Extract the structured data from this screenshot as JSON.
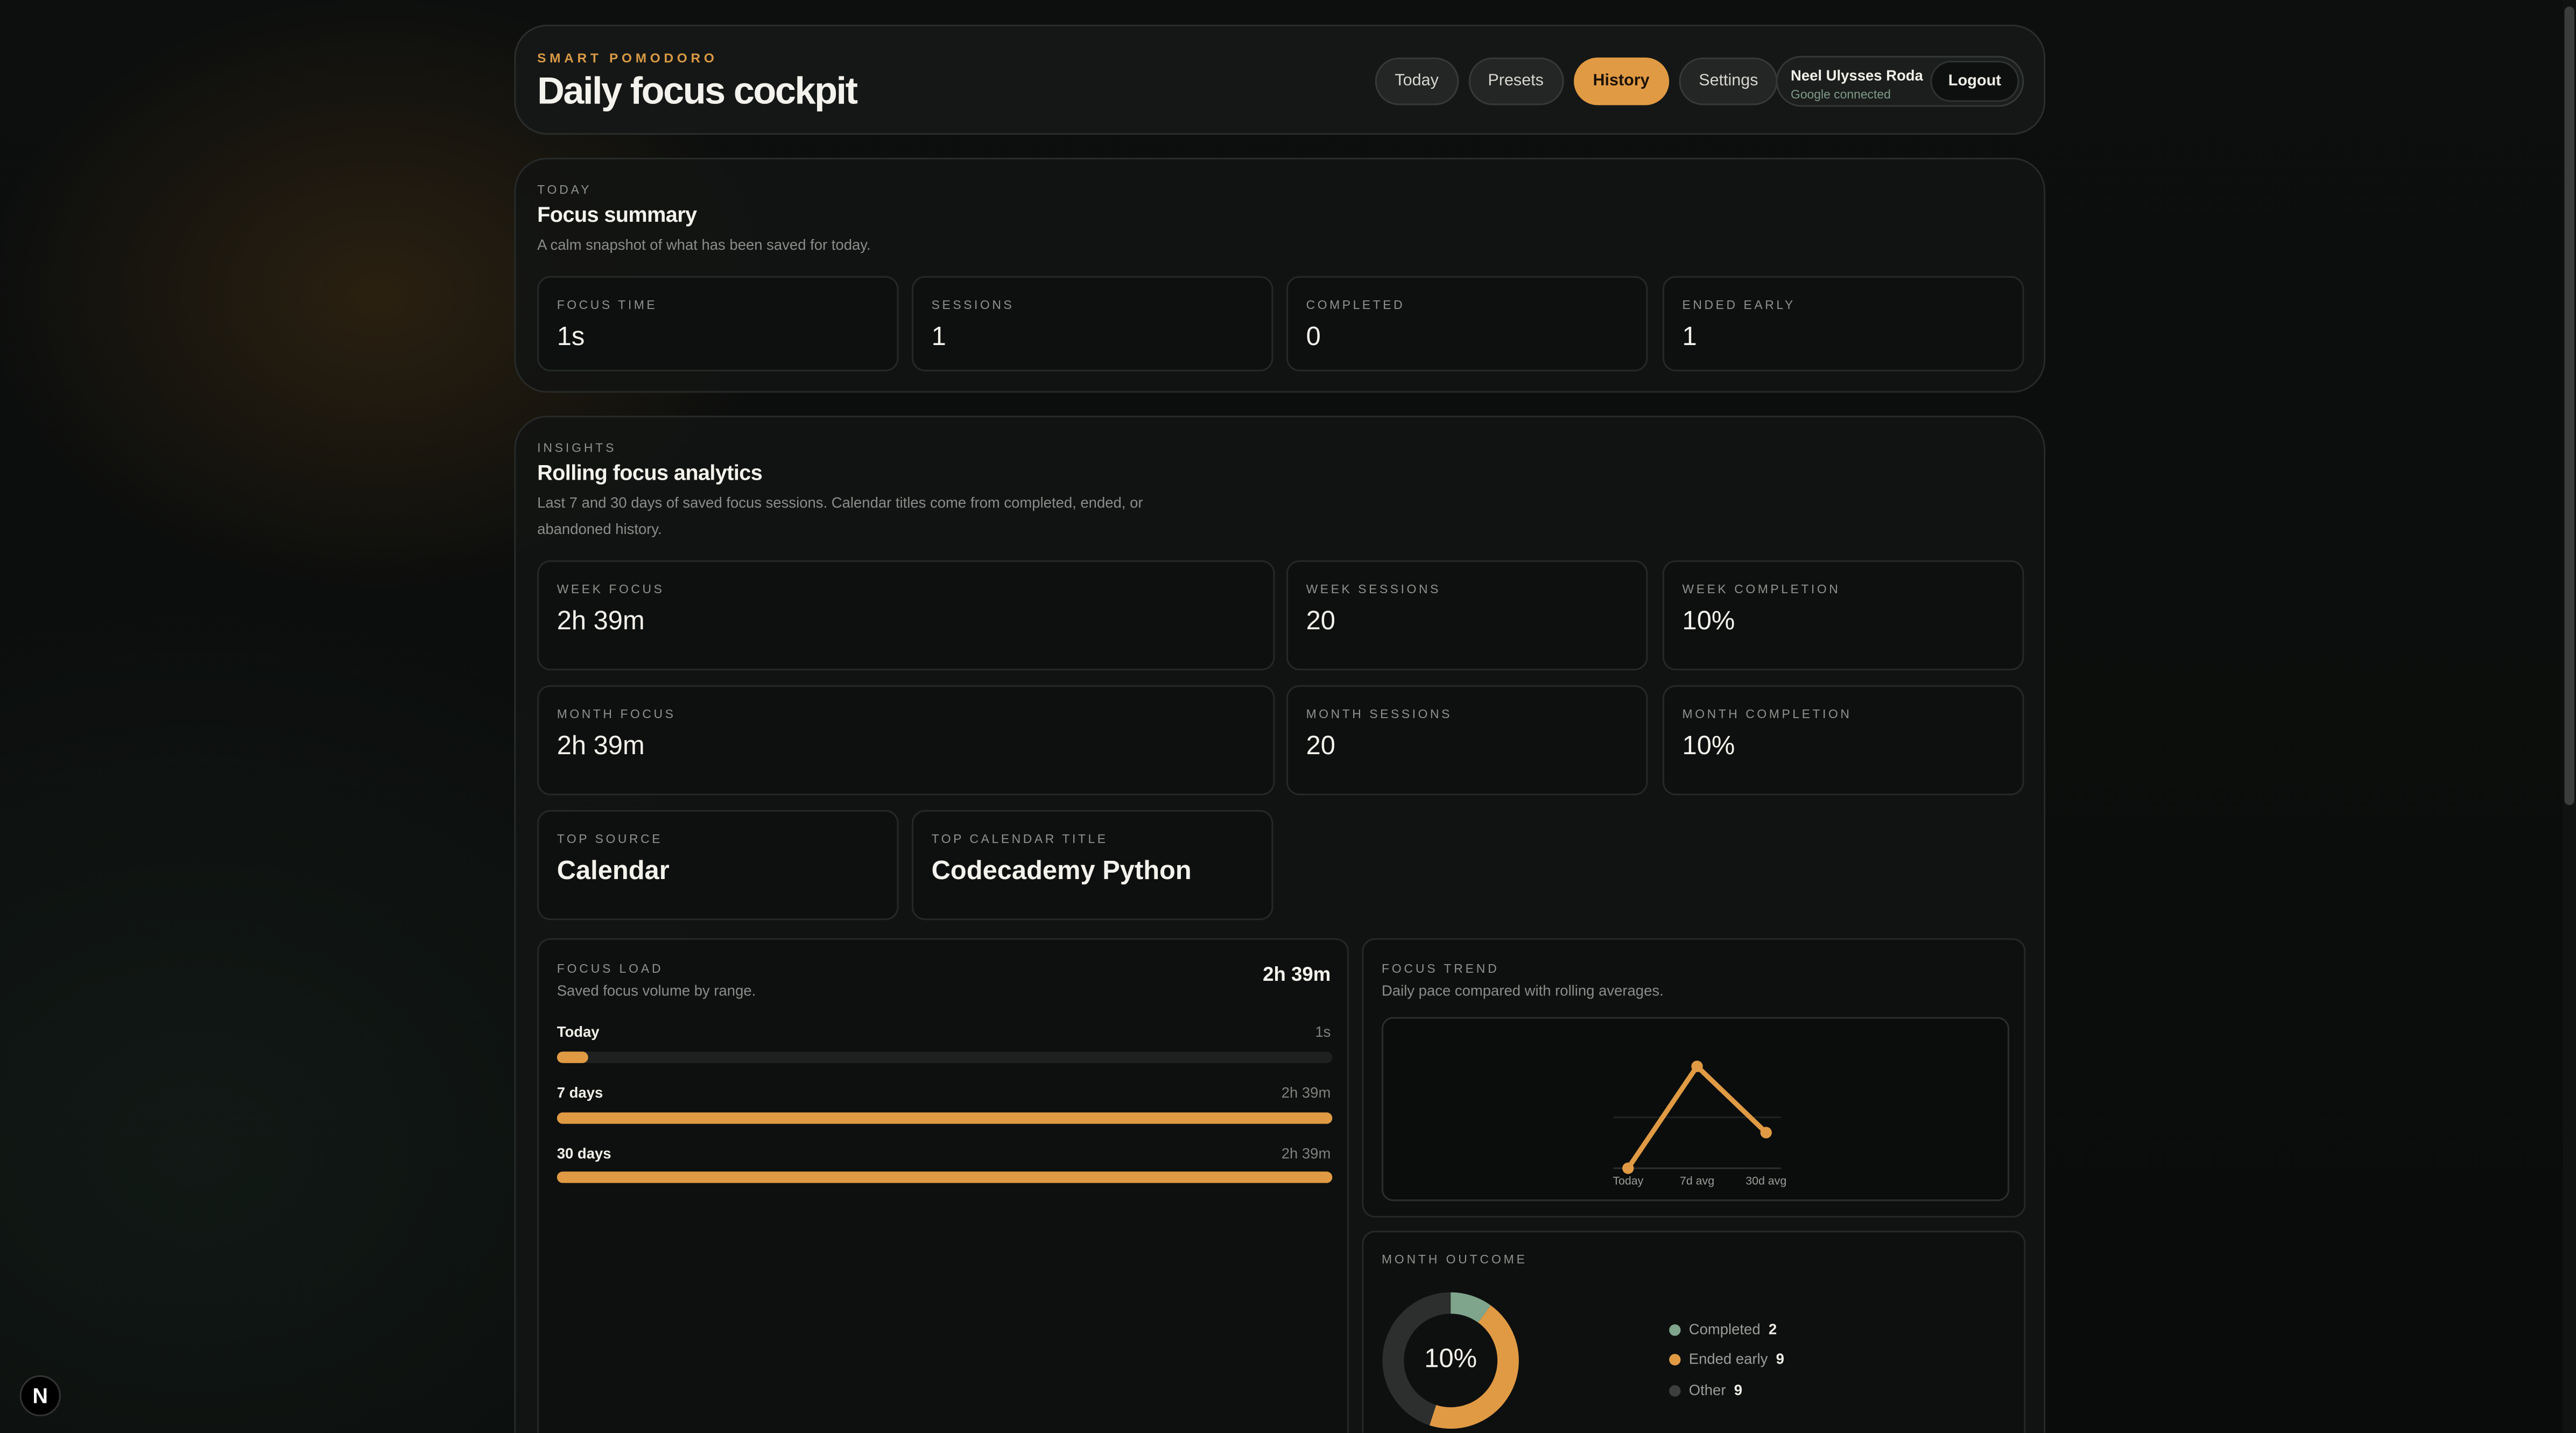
{
  "header": {
    "kicker": "SMART POMODORO",
    "title": "Daily focus cockpit",
    "nav": [
      {
        "label": "Today",
        "active": false
      },
      {
        "label": "Presets",
        "active": false
      },
      {
        "label": "History",
        "active": true
      },
      {
        "label": "Settings",
        "active": false
      }
    ],
    "user": {
      "name": "Neel Ulysses Roda",
      "status": "Google connected",
      "logout_label": "Logout"
    }
  },
  "today": {
    "kicker": "TODAY",
    "title": "Focus summary",
    "description": "A calm snapshot of what has been saved for today.",
    "stats": [
      {
        "label": "FOCUS TIME",
        "value": "1s"
      },
      {
        "label": "SESSIONS",
        "value": "1"
      },
      {
        "label": "COMPLETED",
        "value": "0"
      },
      {
        "label": "ENDED EARLY",
        "value": "1"
      }
    ]
  },
  "insights": {
    "kicker": "INSIGHTS",
    "title": "Rolling focus analytics",
    "description_line1": "Last 7 and 30 days of saved focus sessions. Calendar titles come from completed, ended, or",
    "description_line2": "abandoned history.",
    "stats": {
      "week_focus": {
        "label": "WEEK FOCUS",
        "value": "2h 39m"
      },
      "week_sessions": {
        "label": "WEEK SESSIONS",
        "value": "20"
      },
      "week_completion": {
        "label": "WEEK COMPLETION",
        "value": "10%"
      },
      "month_focus": {
        "label": "MONTH FOCUS",
        "value": "2h 39m"
      },
      "month_sessions": {
        "label": "MONTH SESSIONS",
        "value": "20"
      },
      "month_completion": {
        "label": "MONTH COMPLETION",
        "value": "10%"
      },
      "top_source": {
        "label": "TOP SOURCE",
        "value": "Calendar"
      },
      "top_calendar_title": {
        "label": "TOP CALENDAR TITLE",
        "value": "Codecademy Python"
      }
    },
    "focus_load": {
      "kicker": "FOCUS LOAD",
      "description": "Saved focus volume by range.",
      "total": "2h 39m",
      "rows": [
        {
          "label": "Today",
          "value": "1s",
          "fill_fraction": 0.04
        },
        {
          "label": "7 days",
          "value": "2h 39m",
          "fill_fraction": 1.0
        },
        {
          "label": "30 days",
          "value": "2h 39m",
          "fill_fraction": 1.0
        }
      ]
    },
    "focus_trend": {
      "kicker": "FOCUS TREND",
      "description": "Daily pace compared with rolling averages."
    },
    "month_outcome": {
      "kicker": "MONTH OUTCOME",
      "center_label": "10%",
      "legend": [
        {
          "label": "Completed",
          "count": "2",
          "color": "#7fa58c"
        },
        {
          "label": "Ended early",
          "count": "9",
          "color": "#e19a44"
        },
        {
          "label": "Other",
          "count": "9",
          "color": "#3c3f3d"
        }
      ]
    }
  },
  "chart_data": [
    {
      "type": "line",
      "categories": [
        "Today",
        "7d avg",
        "30d avg"
      ],
      "values": [
        0.0,
        1.0,
        0.35
      ],
      "title": "",
      "xlabel": "",
      "ylabel": "",
      "grid": false,
      "color": "#e19a44"
    },
    {
      "type": "pie",
      "donut": true,
      "labels": [
        "Completed",
        "Ended early",
        "Other"
      ],
      "values": [
        2,
        9,
        9
      ],
      "colors": [
        "#7fa58c",
        "#e19a44",
        "#2c2f2d"
      ],
      "center_label": "10%"
    }
  ],
  "badge": {
    "letter": "N"
  }
}
